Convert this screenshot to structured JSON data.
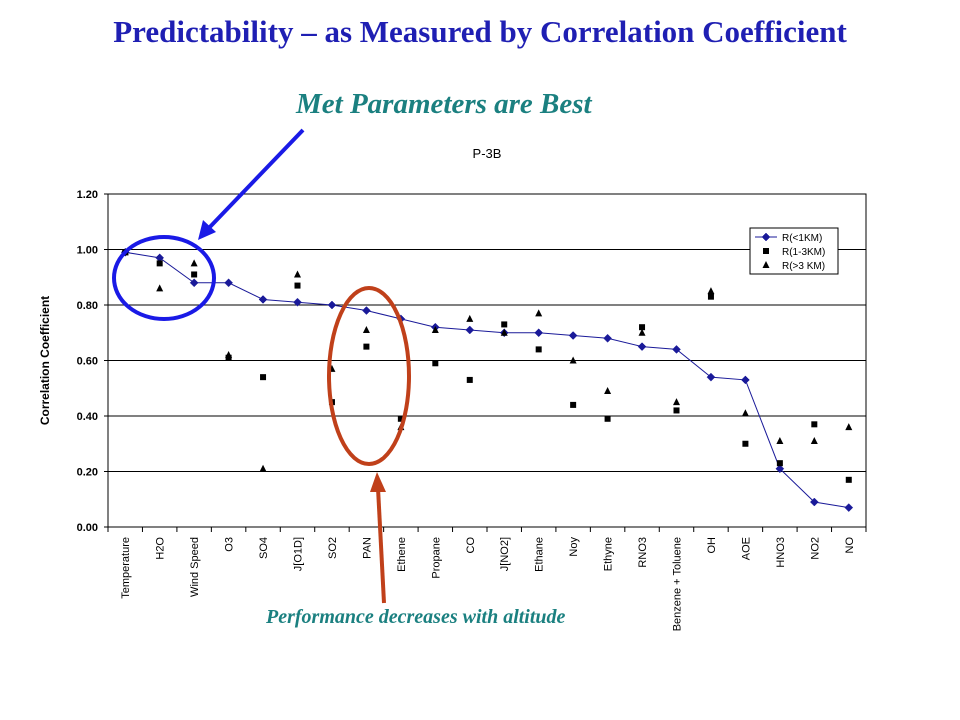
{
  "slide": {
    "title": "Predictability – as Measured by Correlation Coefficient",
    "callout_top": "Met Parameters are Best",
    "callout_bottom": "Performance decreases with altitude"
  },
  "colors": {
    "title": "#1f1fb3",
    "callout_text": "#1b8080",
    "blue_annotation": "#1a1ae6",
    "red_annotation": "#c0401a",
    "series_line": "#1a1a99"
  },
  "chart_data": {
    "type": "line",
    "title": "P-3B",
    "xlabel": "",
    "ylabel": "Correlation Coefficient",
    "ylim": [
      0,
      1.2
    ],
    "yticks": [
      "0.00",
      "0.20",
      "0.40",
      "0.60",
      "0.80",
      "1.00",
      "1.20"
    ],
    "grid": true,
    "legend_position": "top-right",
    "categories": [
      "Temperature",
      "H2O",
      "Wind Speed",
      "O3",
      "SO4",
      "J[O1D]",
      "SO2",
      "PAN",
      "Ethene",
      "Propane",
      "CO",
      "J[NO2]",
      "Ethane",
      "Noy",
      "Ethyne",
      "RNO3",
      "Benzene + Toluene",
      "OH",
      "AOE",
      "HNO3",
      "NO2",
      "NO"
    ],
    "series": [
      {
        "name": "R(<1KM)",
        "marker": "diamond",
        "line": true,
        "values": [
          0.99,
          0.97,
          0.88,
          0.88,
          0.82,
          0.81,
          0.8,
          0.78,
          0.75,
          0.72,
          0.71,
          0.7,
          0.7,
          0.69,
          0.68,
          0.65,
          0.64,
          0.54,
          0.53,
          0.21,
          0.09,
          0.07
        ]
      },
      {
        "name": "R(1-3KM)",
        "marker": "square",
        "line": false,
        "values": [
          0.99,
          0.95,
          0.91,
          0.61,
          0.54,
          0.87,
          0.45,
          0.65,
          0.39,
          0.59,
          0.53,
          0.73,
          0.64,
          0.44,
          0.39,
          0.72,
          0.42,
          0.83,
          0.3,
          0.23,
          0.37,
          0.17
        ]
      },
      {
        "name": "R(>3 KM)",
        "marker": "triangle",
        "line": false,
        "values": [
          0.99,
          0.86,
          0.95,
          0.62,
          0.21,
          0.91,
          0.57,
          0.71,
          0.36,
          0.71,
          0.75,
          0.7,
          0.77,
          0.6,
          0.49,
          0.7,
          0.45,
          0.85,
          0.41,
          0.31,
          0.31,
          0.36
        ]
      }
    ]
  }
}
